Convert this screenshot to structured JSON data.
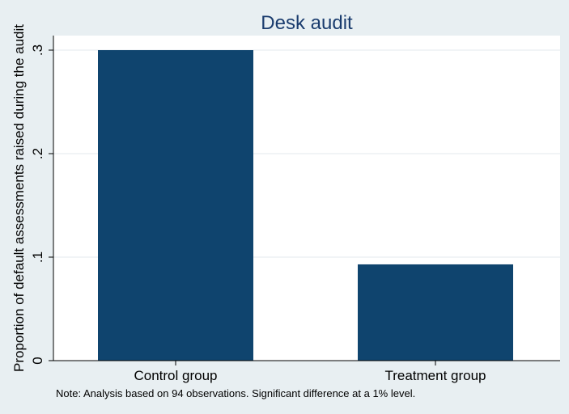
{
  "chart_data": {
    "type": "bar",
    "title": "Desk audit",
    "ylabel": "Proportion of default assessments raised during the audit",
    "xlabel": "",
    "categories": [
      "Control group",
      "Treatment group"
    ],
    "values": [
      0.3,
      0.093
    ],
    "ylim": [
      0,
      0.3
    ],
    "yticks": [
      0,
      0.1,
      0.2,
      0.3
    ],
    "ytick_labels": [
      "0",
      ".1",
      ".2",
      ".3"
    ],
    "grid": true,
    "bar_color": "#0f446e",
    "note": "Note: Analysis based on 94 observations. Significant difference at a 1% level."
  }
}
